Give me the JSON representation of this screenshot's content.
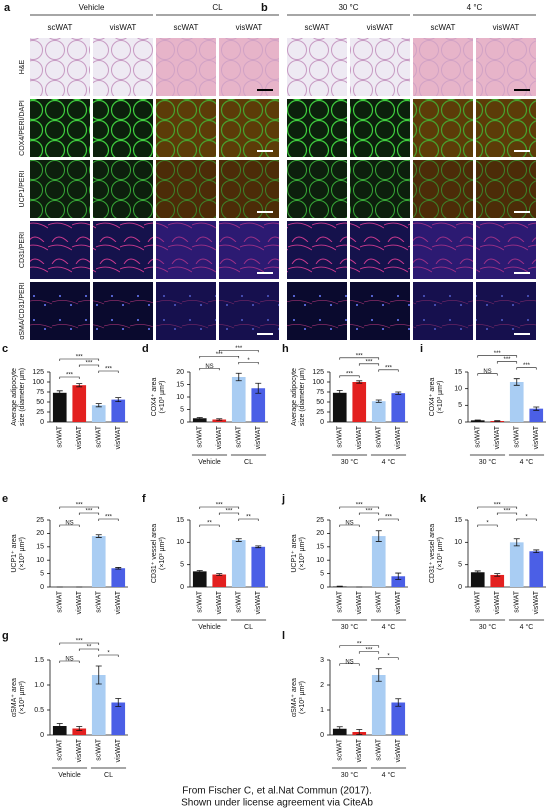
{
  "figure": {
    "panels": [
      {
        "label": "a",
        "groups": [
          "Vehicle",
          "CL"
        ],
        "columns": [
          "scWAT",
          "visWAT",
          "scWAT",
          "visWAT"
        ]
      },
      {
        "label": "b",
        "groups": [
          "30 °C",
          "4 °C"
        ],
        "columns": [
          "scWAT",
          "visWAT",
          "scWAT",
          "visWAT"
        ]
      }
    ],
    "rows": [
      "H&E",
      "COX4/PERI/DAPI",
      "UCP1/PERI",
      "CD31/PERI",
      "αSMA/CD31/PERI"
    ]
  },
  "chart_data": [
    {
      "type": "bar",
      "panel": "c",
      "ylabel": [
        "Average adipocyte",
        "size (diameter µm)"
      ],
      "categories": [
        "scWAT",
        "visWAT",
        "scWAT",
        "visWAT"
      ],
      "values": [
        73,
        92,
        42,
        56
      ],
      "errors": [
        5,
        4,
        4,
        5
      ],
      "colors": [
        "#111111",
        "#e3201f",
        "#a9cdf3",
        "#4b5fe6"
      ],
      "ylim": [
        0,
        125
      ],
      "yticks": [
        0,
        25,
        50,
        75,
        100,
        125
      ],
      "significance": [
        {
          "between": [
            0,
            1
          ],
          "label": "***"
        },
        {
          "between": [
            2,
            3
          ],
          "label": "***"
        },
        {
          "between": [
            1,
            2
          ],
          "label": "***"
        },
        {
          "between": [
            0,
            2
          ],
          "label": "***"
        }
      ]
    },
    {
      "type": "bar",
      "panel": "d",
      "ylabel": [
        "COX4⁺ area",
        "(×10³ µm²)"
      ],
      "categories": [
        "scWAT",
        "visWAT",
        "scWAT",
        "visWAT"
      ],
      "values": [
        1.5,
        1.0,
        18,
        13.5
      ],
      "errors": [
        0.3,
        0.3,
        1.5,
        2
      ],
      "colors": [
        "#111111",
        "#e3201f",
        "#a9cdf3",
        "#4b5fe6"
      ],
      "ylim": [
        0,
        20
      ],
      "yticks": [
        0,
        5,
        10,
        15,
        20
      ],
      "groups": [
        "Vehicle",
        "CL"
      ],
      "significance": [
        {
          "between": [
            0,
            1
          ],
          "label": "NS"
        },
        {
          "between": [
            2,
            3
          ],
          "label": "*"
        },
        {
          "between": [
            0,
            2
          ],
          "label": "***"
        },
        {
          "between": [
            1,
            3
          ],
          "label": "***"
        }
      ]
    },
    {
      "type": "bar",
      "panel": "h",
      "ylabel": [
        "Average adipocyte",
        "size (diameter µm)"
      ],
      "categories": [
        "scWAT",
        "visWAT",
        "scWAT",
        "visWAT"
      ],
      "values": [
        73,
        100,
        52,
        72
      ],
      "errors": [
        6,
        3,
        3,
        3
      ],
      "colors": [
        "#111111",
        "#e3201f",
        "#a9cdf3",
        "#4b5fe6"
      ],
      "ylim": [
        0,
        125
      ],
      "yticks": [
        0,
        25,
        50,
        75,
        100,
        125
      ],
      "groups": [
        "30 °C",
        "4 °C"
      ],
      "significance": [
        {
          "between": [
            0,
            1
          ],
          "label": "***"
        },
        {
          "between": [
            2,
            3
          ],
          "label": "***"
        },
        {
          "between": [
            1,
            2
          ],
          "label": "***"
        },
        {
          "between": [
            0,
            2
          ],
          "label": "***"
        }
      ]
    },
    {
      "type": "bar",
      "panel": "i",
      "ylabel": [
        "COX4⁺ area",
        "(×10³ µm²)"
      ],
      "categories": [
        "scWAT",
        "visWAT",
        "scWAT",
        "visWAT"
      ],
      "values": [
        0.5,
        0.3,
        12,
        4
      ],
      "errors": [
        0.1,
        0.1,
        1,
        0.5
      ],
      "colors": [
        "#111111",
        "#e3201f",
        "#a9cdf3",
        "#4b5fe6"
      ],
      "ylim": [
        0,
        15
      ],
      "yticks": [
        0,
        5,
        10,
        15
      ],
      "groups": [
        "30 °C",
        "4 °C"
      ],
      "significance": [
        {
          "between": [
            0,
            1
          ],
          "label": "NS"
        },
        {
          "between": [
            2,
            3
          ],
          "label": "***"
        },
        {
          "between": [
            1,
            2
          ],
          "label": "***"
        },
        {
          "between": [
            0,
            2
          ],
          "label": "***"
        }
      ]
    },
    {
      "type": "bar",
      "panel": "e",
      "ylabel": [
        "UCP1⁺ area",
        "(×10³ µm²)"
      ],
      "categories": [
        "scWAT",
        "visWAT",
        "scWAT",
        "visWAT"
      ],
      "values": [
        0,
        0,
        19,
        7
      ],
      "errors": [
        0,
        0,
        0.5,
        0.3
      ],
      "colors": [
        "#111111",
        "#e3201f",
        "#a9cdf3",
        "#4b5fe6"
      ],
      "ylim": [
        0,
        25
      ],
      "yticks": [
        0,
        5,
        10,
        15,
        20,
        25
      ],
      "significance": [
        {
          "between": [
            0,
            1
          ],
          "label": "NS"
        },
        {
          "between": [
            2,
            3
          ],
          "label": "***"
        },
        {
          "between": [
            1,
            2
          ],
          "label": "***"
        },
        {
          "between": [
            0,
            2
          ],
          "label": "***"
        }
      ]
    },
    {
      "type": "bar",
      "panel": "f",
      "ylabel": [
        "CD31⁺ vessel area",
        "(×10³ µm²)"
      ],
      "categories": [
        "scWAT",
        "visWAT",
        "scWAT",
        "visWAT"
      ],
      "values": [
        3.5,
        2.8,
        10.5,
        9
      ],
      "errors": [
        0.2,
        0.2,
        0.3,
        0.2
      ],
      "colors": [
        "#111111",
        "#e3201f",
        "#a9cdf3",
        "#4b5fe6"
      ],
      "ylim": [
        0,
        15
      ],
      "yticks": [
        0,
        5,
        10,
        15
      ],
      "groups": [
        "Vehicle",
        "CL"
      ],
      "significance": [
        {
          "between": [
            0,
            1
          ],
          "label": "**"
        },
        {
          "between": [
            2,
            3
          ],
          "label": "**"
        },
        {
          "between": [
            1,
            2
          ],
          "label": "***"
        },
        {
          "between": [
            0,
            2
          ],
          "label": "***"
        }
      ]
    },
    {
      "type": "bar",
      "panel": "j",
      "ylabel": [
        "UCP1⁺ area",
        "(×10³ µm²)"
      ],
      "categories": [
        "scWAT",
        "visWAT",
        "scWAT",
        "visWAT"
      ],
      "values": [
        0.2,
        0,
        19,
        4
      ],
      "errors": [
        0.1,
        0,
        2,
        1.2
      ],
      "colors": [
        "#111111",
        "#e3201f",
        "#a9cdf3",
        "#4b5fe6"
      ],
      "ylim": [
        0,
        25
      ],
      "yticks": [
        0,
        5,
        10,
        15,
        20,
        25
      ],
      "groups": [
        "30 °C",
        "4 °C"
      ],
      "significance": [
        {
          "between": [
            0,
            1
          ],
          "label": "NS"
        },
        {
          "between": [
            2,
            3
          ],
          "label": "***"
        },
        {
          "between": [
            1,
            2
          ],
          "label": "***"
        },
        {
          "between": [
            0,
            2
          ],
          "label": "***"
        }
      ]
    },
    {
      "type": "bar",
      "panel": "k",
      "ylabel": [
        "CD31⁺ vessel area",
        "(×10³ µm²)"
      ],
      "categories": [
        "scWAT",
        "visWAT",
        "scWAT",
        "visWAT"
      ],
      "values": [
        3.3,
        2.7,
        10,
        8
      ],
      "errors": [
        0.3,
        0.3,
        0.8,
        0.3
      ],
      "colors": [
        "#111111",
        "#e3201f",
        "#a9cdf3",
        "#4b5fe6"
      ],
      "ylim": [
        0,
        15
      ],
      "yticks": [
        0,
        5,
        10,
        15
      ],
      "groups": [
        "30 °C",
        "4 °C"
      ],
      "significance": [
        {
          "between": [
            0,
            1
          ],
          "label": "*"
        },
        {
          "between": [
            2,
            3
          ],
          "label": "*"
        },
        {
          "between": [
            1,
            2
          ],
          "label": "***"
        },
        {
          "between": [
            0,
            2
          ],
          "label": "***"
        }
      ]
    },
    {
      "type": "bar",
      "panel": "g",
      "ylabel": [
        "αSMA⁺ area",
        "(×10³ µm²)"
      ],
      "categories": [
        "scWAT",
        "visWAT",
        "scWAT",
        "visWAT"
      ],
      "values": [
        0.18,
        0.13,
        1.2,
        0.65
      ],
      "errors": [
        0.05,
        0.04,
        0.18,
        0.08
      ],
      "colors": [
        "#111111",
        "#e3201f",
        "#a9cdf3",
        "#4b5fe6"
      ],
      "ylim": [
        0,
        1.5
      ],
      "yticks": [
        0,
        0.5,
        {
          "value": 1,
          "label": "1.0"
        },
        1.5
      ],
      "groups": [
        "Vehicle",
        "CL"
      ],
      "significance": [
        {
          "between": [
            0,
            1
          ],
          "label": "NS"
        },
        {
          "between": [
            2,
            3
          ],
          "label": "*"
        },
        {
          "between": [
            1,
            2
          ],
          "label": "**"
        },
        {
          "between": [
            0,
            2
          ],
          "label": "***"
        }
      ]
    },
    {
      "type": "bar",
      "panel": "l",
      "ylabel": [
        "αSMA⁺ area",
        "(×10³ µm²)"
      ],
      "categories": [
        "scWAT",
        "visWAT",
        "scWAT",
        "visWAT"
      ],
      "values": [
        0.25,
        0.12,
        2.4,
        1.3
      ],
      "errors": [
        0.08,
        0.1,
        0.25,
        0.15
      ],
      "colors": [
        "#111111",
        "#e3201f",
        "#a9cdf3",
        "#4b5fe6"
      ],
      "ylim": [
        0,
        3
      ],
      "yticks": [
        0,
        1,
        2,
        3
      ],
      "groups": [
        "30 °C",
        "4 °C"
      ],
      "significance": [
        {
          "between": [
            0,
            1
          ],
          "label": "NS"
        },
        {
          "between": [
            2,
            3
          ],
          "label": "*"
        },
        {
          "between": [
            1,
            2
          ],
          "label": "***"
        },
        {
          "between": [
            0,
            2
          ],
          "label": "**"
        }
      ]
    }
  ],
  "caption": [
    "From Fischer C, et al.Nat Commun (2017).",
    "Shown under license agreement via CiteAb"
  ]
}
